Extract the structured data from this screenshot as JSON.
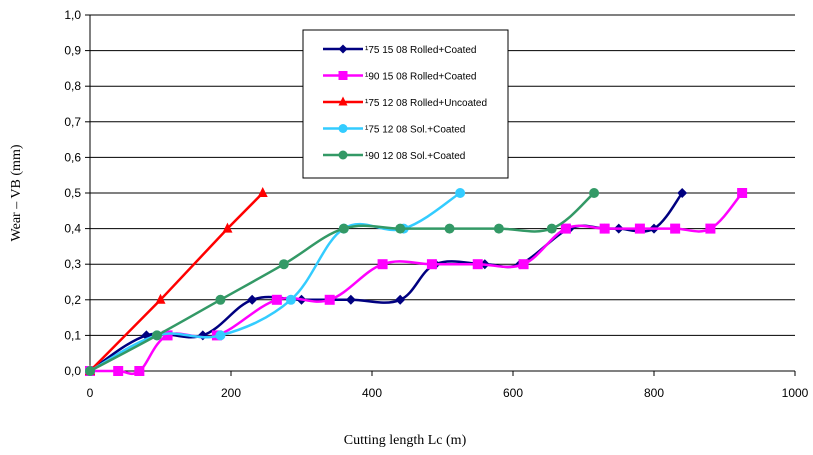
{
  "chart_data": {
    "type": "line",
    "title": "",
    "xlabel": "Cutting length Lc (m)",
    "ylabel": "Wear – VB (mm)",
    "xlim": [
      0,
      1000
    ],
    "ylim": [
      0,
      1.0
    ],
    "xticks": [
      "0",
      "200",
      "400",
      "600",
      "800",
      "1000"
    ],
    "yticks": [
      "0,0",
      "0,1",
      "0,2",
      "0,3",
      "0,4",
      "0,5",
      "0,6",
      "0,7",
      "0,8",
      "0,9",
      "1,0"
    ],
    "grid": "horizontal",
    "legend_position": "top-center",
    "series": [
      {
        "name": "¹75 15 08 Rolled+Coated",
        "color": "#000080",
        "marker": "diamond",
        "points": [
          [
            0,
            0
          ],
          [
            80,
            0.1
          ],
          [
            160,
            0.1
          ],
          [
            230,
            0.2
          ],
          [
            300,
            0.2
          ],
          [
            370,
            0.2
          ],
          [
            440,
            0.2
          ],
          [
            490,
            0.3
          ],
          [
            560,
            0.3
          ],
          [
            610,
            0.3
          ],
          [
            680,
            0.4
          ],
          [
            730,
            0.4
          ],
          [
            750,
            0.4
          ],
          [
            800,
            0.4
          ],
          [
            840,
            0.5
          ]
        ]
      },
      {
        "name": "¹90 15 08 Rolled+Coated",
        "color": "#ff00ff",
        "marker": "square",
        "points": [
          [
            0,
            0
          ],
          [
            40,
            0
          ],
          [
            70,
            0
          ],
          [
            110,
            0.1
          ],
          [
            180,
            0.1
          ],
          [
            265,
            0.2
          ],
          [
            340,
            0.2
          ],
          [
            415,
            0.3
          ],
          [
            485,
            0.3
          ],
          [
            550,
            0.3
          ],
          [
            615,
            0.3
          ],
          [
            675,
            0.4
          ],
          [
            730,
            0.4
          ],
          [
            780,
            0.4
          ],
          [
            830,
            0.4
          ],
          [
            880,
            0.4
          ],
          [
            925,
            0.5
          ]
        ]
      },
      {
        "name": "¹75 12 08 Rolled+Uncoated",
        "color": "#ff0000",
        "marker": "triangle",
        "points": [
          [
            0,
            0
          ],
          [
            100,
            0.2
          ],
          [
            195,
            0.4
          ],
          [
            245,
            0.5
          ]
        ]
      },
      {
        "name": "¹75 12 08 Sol.+Coated",
        "color": "#33ccff",
        "marker": "circle",
        "points": [
          [
            0,
            0
          ],
          [
            95,
            0.1
          ],
          [
            185,
            0.1
          ],
          [
            285,
            0.2
          ],
          [
            360,
            0.4
          ],
          [
            445,
            0.4
          ],
          [
            525,
            0.5
          ]
        ]
      },
      {
        "name": "¹90 12 08 Sol.+Coated",
        "color": "#339966",
        "marker": "circle",
        "points": [
          [
            0,
            0
          ],
          [
            95,
            0.1
          ],
          [
            185,
            0.2
          ],
          [
            275,
            0.3
          ],
          [
            360,
            0.4
          ],
          [
            440,
            0.4
          ],
          [
            510,
            0.4
          ],
          [
            580,
            0.4
          ],
          [
            655,
            0.4
          ],
          [
            715,
            0.5
          ]
        ]
      }
    ]
  }
}
